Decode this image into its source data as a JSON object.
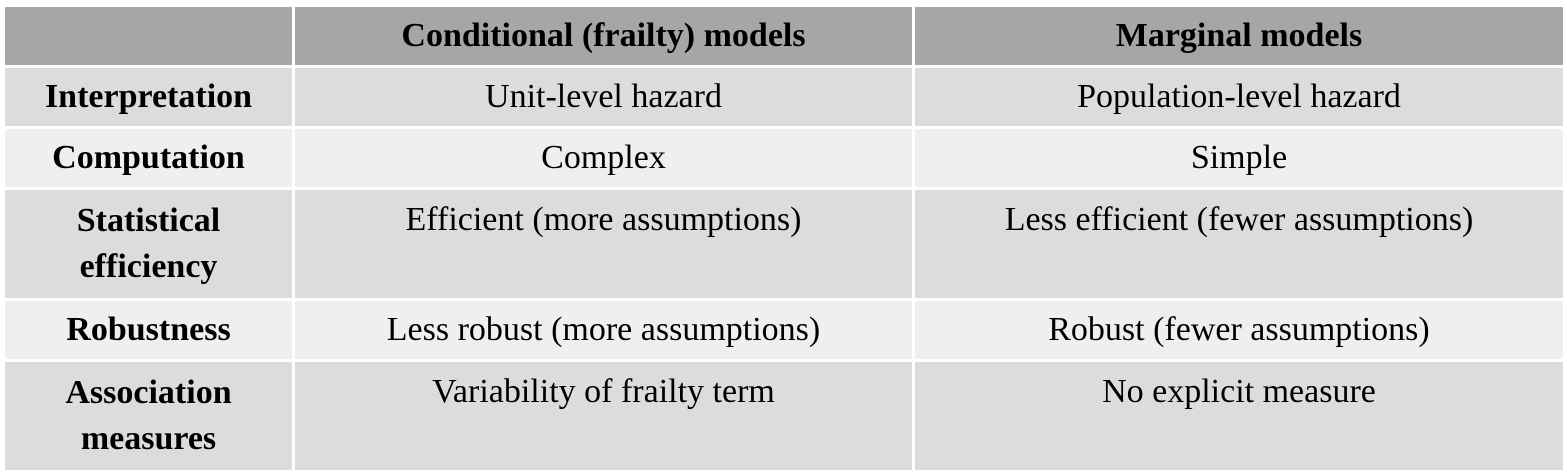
{
  "table": {
    "header": {
      "corner": "",
      "col1": "Conditional (frailty) models",
      "col2": "Marginal models"
    },
    "rows": [
      {
        "label": "Interpretation",
        "conditional": "Unit-level hazard",
        "marginal": "Population-level hazard"
      },
      {
        "label": "Computation",
        "conditional": "Complex",
        "marginal": "Simple"
      },
      {
        "label_line1": "Statistical",
        "label_line2": "efficiency",
        "conditional": "Efficient (more assumptions)",
        "marginal": "Less efficient (fewer assumptions)"
      },
      {
        "label": "Robustness",
        "conditional": "Less robust (more assumptions)",
        "marginal": "Robust (fewer assumptions)"
      },
      {
        "label_line1": "Association",
        "label_line2": "measures",
        "conditional": "Variability of frailty term",
        "marginal": "No explicit measure"
      }
    ]
  }
}
